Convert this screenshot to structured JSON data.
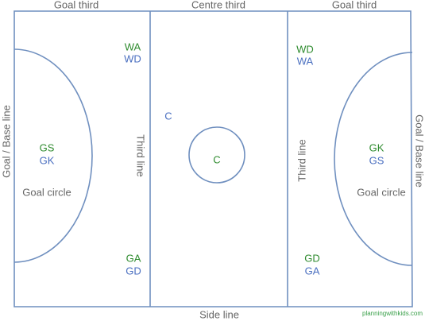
{
  "colors": {
    "line": "#6f8fbf",
    "attack_team": "#2e8b2e",
    "defence_team": "#4a6fc0",
    "label_text": "#666666",
    "watermark": "#3aa04a"
  },
  "court": {
    "thirds": {
      "left": "Goal third",
      "centre": "Centre third",
      "right": "Goal third"
    },
    "side_line": "Side line",
    "goal_line_left": "Goal / Base  line",
    "goal_line_right": "Goal / Base  line",
    "third_line_left": "Third line",
    "third_line_right": "Third line",
    "goal_circle_left": "Goal circle",
    "goal_circle_right": "Goal circle",
    "centre_circle_label": "C"
  },
  "positions": {
    "left_third_line_top": [
      "WA",
      "WD"
    ],
    "left_circle": [
      "GS",
      "GK"
    ],
    "left_third_line_bottom": [
      "GA",
      "GD"
    ],
    "centre_c": "C",
    "right_third_line_top": [
      "WD",
      "WA"
    ],
    "right_circle": [
      "GK",
      "GS"
    ],
    "right_third_line_bottom": [
      "GD",
      "GA"
    ]
  },
  "watermark": "planningwithkids.com"
}
